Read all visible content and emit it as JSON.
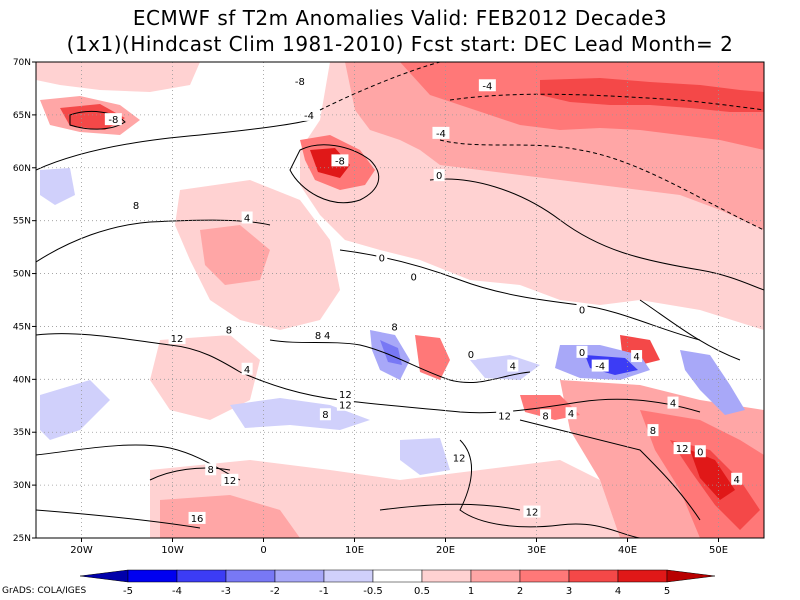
{
  "title": {
    "line1": "ECMWF sf T2m Anomalies Valid: FEB2012 Decade3",
    "line2": "(1x1)(Hindcast Clim 1981-2010) Fcst start: DEC  Lead Month= 2"
  },
  "map": {
    "lon_range": [
      -25,
      55
    ],
    "lat_range": [
      25,
      70
    ],
    "lon_ticks": [
      {
        "value": -20,
        "label": "20W"
      },
      {
        "value": -10,
        "label": "10W"
      },
      {
        "value": 0,
        "label": "0"
      },
      {
        "value": 10,
        "label": "10E"
      },
      {
        "value": 20,
        "label": "20E"
      },
      {
        "value": 30,
        "label": "30E"
      },
      {
        "value": 40,
        "label": "40E"
      },
      {
        "value": 50,
        "label": "50E"
      }
    ],
    "lat_ticks": [
      {
        "value": 25,
        "label": "25N"
      },
      {
        "value": 30,
        "label": "30N"
      },
      {
        "value": 35,
        "label": "35N"
      },
      {
        "value": 40,
        "label": "40N"
      },
      {
        "value": 45,
        "label": "45N"
      },
      {
        "value": 50,
        "label": "50N"
      },
      {
        "value": 55,
        "label": "55N"
      },
      {
        "value": 60,
        "label": "60N"
      },
      {
        "value": 65,
        "label": "65N"
      },
      {
        "value": 70,
        "label": "70N"
      }
    ],
    "grid": "dotted",
    "contour_labels": [
      {
        "text": "-8",
        "lon": 4,
        "lat": 68.2
      },
      {
        "text": "-8",
        "lon": -16.5,
        "lat": 64.6
      },
      {
        "text": "-4",
        "lon": 19.5,
        "lat": 63.3
      },
      {
        "text": "-8",
        "lon": 8.4,
        "lat": 60.7
      },
      {
        "text": "-4",
        "lon": 24.6,
        "lat": 67.8
      },
      {
        "text": "-4",
        "lon": 5,
        "lat": 65
      },
      {
        "text": "0",
        "lon": 19.3,
        "lat": 59.3
      },
      {
        "text": "8",
        "lon": -14,
        "lat": 56.5
      },
      {
        "text": "4",
        "lon": -1.8,
        "lat": 55.3
      },
      {
        "text": "0",
        "lon": 13,
        "lat": 51.5
      },
      {
        "text": "0",
        "lon": 16.5,
        "lat": 49.7
      },
      {
        "text": "0",
        "lon": 35,
        "lat": 46.6
      },
      {
        "text": "8",
        "lon": -3.8,
        "lat": 44.7
      },
      {
        "text": "12",
        "lon": -9.5,
        "lat": 43.9
      },
      {
        "text": "8",
        "lon": 6,
        "lat": 44.2
      },
      {
        "text": "4",
        "lon": 7,
        "lat": 44.2
      },
      {
        "text": "8",
        "lon": 14.4,
        "lat": 45
      },
      {
        "text": "4",
        "lon": -1.8,
        "lat": 41
      },
      {
        "text": "0",
        "lon": 22.8,
        "lat": 42.4
      },
      {
        "text": "4",
        "lon": 27.4,
        "lat": 41.3
      },
      {
        "text": "0",
        "lon": 35,
        "lat": 42.6
      },
      {
        "text": "-4",
        "lon": 37,
        "lat": 41.3
      },
      {
        "text": "4",
        "lon": 41,
        "lat": 42.2
      },
      {
        "text": "8",
        "lon": 6.8,
        "lat": 36.7
      },
      {
        "text": "12",
        "lon": 9,
        "lat": 38.6
      },
      {
        "text": "12",
        "lon": 9,
        "lat": 37.6
      },
      {
        "text": "12",
        "lon": 26.5,
        "lat": 36.6
      },
      {
        "text": "8",
        "lon": 31,
        "lat": 36.6
      },
      {
        "text": "4",
        "lon": 33.8,
        "lat": 36.8
      },
      {
        "text": "4",
        "lon": 45,
        "lat": 37.8
      },
      {
        "text": "8",
        "lon": 42.8,
        "lat": 35.2
      },
      {
        "text": "12",
        "lon": 46,
        "lat": 33.5
      },
      {
        "text": "0",
        "lon": 48,
        "lat": 33.2
      },
      {
        "text": "4",
        "lon": 52,
        "lat": 30.6
      },
      {
        "text": "12",
        "lon": 21.5,
        "lat": 32.6
      },
      {
        "text": "8",
        "lon": -5.8,
        "lat": 31.5
      },
      {
        "text": "12",
        "lon": -3.7,
        "lat": 30.5
      },
      {
        "text": "16",
        "lon": -7.3,
        "lat": 26.9
      },
      {
        "text": "12",
        "lon": 29.5,
        "lat": 27.5
      }
    ]
  },
  "colorbar": {
    "labels": [
      "-5",
      "-4",
      "-3",
      "-2",
      "-1",
      "-0.5",
      "0.5",
      "1",
      "2",
      "3",
      "4",
      "5"
    ],
    "colors": {
      "below": "#0000aa",
      "bins": [
        "#0000f0",
        "#3c3cf5",
        "#7878f5",
        "#a8a8f8",
        "#d0d0fb",
        "#ffffff",
        "#ffd2d2",
        "#ffa6a6",
        "#ff7878",
        "#f44848",
        "#e01818"
      ],
      "above": "#b80000"
    }
  },
  "credit": "GrADS: COLA/IGES"
}
